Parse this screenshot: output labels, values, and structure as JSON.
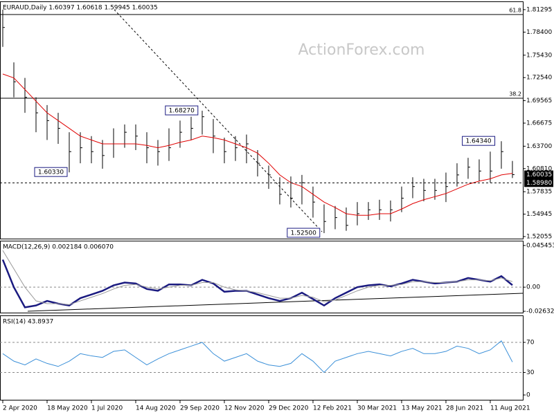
{
  "chart_data": [
    {
      "type": "ohlc",
      "title": "EURAUD,Daily  1.60397 1.60618 1.59945 1.60035",
      "watermark": "ActionForex.com",
      "color": "#000000",
      "xlim": [
        -0.25,
        46.94
      ],
      "xticks": [
        {
          "value": 0,
          "label": "2 Apr 2020"
        },
        {
          "value": 4,
          "label": "18 May 2020"
        },
        {
          "value": 8,
          "label": "1 Jul 2020"
        },
        {
          "value": 12,
          "label": "14 Aug 2020"
        },
        {
          "value": 16,
          "label": "29 Sep 2020"
        },
        {
          "value": 20,
          "label": "12 Nov 2020"
        },
        {
          "value": 24,
          "label": "29 Dec 2020"
        },
        {
          "value": 28,
          "label": "12 Feb 2021"
        },
        {
          "value": 32,
          "label": "30 Mar 2021"
        },
        {
          "value": 36,
          "label": "13 May 2021"
        },
        {
          "value": 40,
          "label": "28 Jun 2021"
        },
        {
          "value": 44,
          "label": "11 Aug 2021"
        }
      ],
      "ylim": [
        1.5179,
        1.8236
      ],
      "yticks": [
        1.81295,
        {
          "value": 1.784,
          "label": "1.78400"
        },
        {
          "value": 1.7543,
          "label": "1.75430"
        },
        {
          "value": 1.7254,
          "label": "1.72540"
        },
        1.69565,
        1.66675,
        {
          "value": 1.637,
          "label": "1.63700"
        },
        {
          "value": 1.6081,
          "label": "1.60810"
        },
        1.57835,
        1.54945,
        1.52055
      ],
      "high": [
        1.81295,
        1.745,
        1.725,
        1.7,
        1.69,
        1.68,
        1.655,
        1.655,
        1.65,
        1.645,
        1.66,
        1.665,
        1.665,
        1.655,
        1.645,
        1.66,
        1.67,
        1.675,
        1.6827,
        1.672,
        1.648,
        1.65,
        1.652,
        1.632,
        1.612,
        1.597,
        1.598,
        1.6,
        1.585,
        1.562,
        1.56,
        1.558,
        1.565,
        1.565,
        1.568,
        1.567,
        1.585,
        1.597,
        1.595,
        1.595,
        1.603,
        1.615,
        1.622,
        1.62,
        1.63,
        1.6434,
        1.618
      ],
      "low": [
        1.765,
        1.7,
        1.68,
        1.655,
        1.645,
        1.64,
        1.6033,
        1.615,
        1.615,
        1.608,
        1.622,
        1.635,
        1.632,
        1.615,
        1.612,
        1.618,
        1.635,
        1.645,
        1.652,
        1.628,
        1.615,
        1.618,
        1.615,
        1.598,
        1.582,
        1.562,
        1.558,
        1.562,
        1.545,
        1.525,
        1.53,
        1.528,
        1.535,
        1.542,
        1.542,
        1.54,
        1.552,
        1.57,
        1.566,
        1.568,
        1.565,
        1.585,
        1.595,
        1.592,
        1.59,
        1.608,
        1.596
      ],
      "close": [
        1.79,
        1.72,
        1.7,
        1.68,
        1.67,
        1.66,
        1.63,
        1.635,
        1.63,
        1.625,
        1.64,
        1.655,
        1.65,
        1.635,
        1.63,
        1.635,
        1.655,
        1.66,
        1.675,
        1.65,
        1.63,
        1.635,
        1.64,
        1.615,
        1.6,
        1.575,
        1.57,
        1.59,
        1.565,
        1.54,
        1.545,
        1.535,
        1.55,
        1.555,
        1.555,
        1.555,
        1.57,
        1.585,
        1.58,
        1.58,
        1.585,
        1.6,
        1.61,
        1.605,
        1.605,
        1.63,
        1.60035
      ],
      "ma": {
        "color": "#e00000",
        "values": [
          1.73,
          1.725,
          1.71,
          1.695,
          1.68,
          1.67,
          1.66,
          1.65,
          1.645,
          1.64,
          1.64,
          1.64,
          1.64,
          1.638,
          1.635,
          1.638,
          1.642,
          1.645,
          1.65,
          1.648,
          1.645,
          1.64,
          1.635,
          1.628,
          1.615,
          1.6,
          1.59,
          1.585,
          1.575,
          1.565,
          1.558,
          1.55,
          1.548,
          1.548,
          1.55,
          1.55,
          1.556,
          1.563,
          1.568,
          1.572,
          1.576,
          1.582,
          1.588,
          1.592,
          1.595,
          1.6,
          1.602
        ]
      },
      "fib_levels": [
        {
          "label": "61.8",
          "value": 1.8067
        },
        {
          "label": "38.2",
          "value": 1.6988
        }
      ],
      "price_marks": [
        {
          "label": "1.60035",
          "value": 1.60035,
          "dashed": false
        },
        {
          "label": "1.58980",
          "value": 1.5898,
          "dashed": true
        }
      ],
      "callouts": [
        {
          "label": "1.68270",
          "value": 1.6827,
          "at": 17.8
        },
        {
          "label": "1.60330",
          "value": 1.6033,
          "at": 6
        },
        {
          "label": "1.52500",
          "value": 1.525,
          "at": 28.8
        },
        {
          "label": "1.64340",
          "value": 1.6434,
          "at": 44.6
        }
      ]
    },
    {
      "type": "line",
      "title": "MACD(12,26,9) 0.002184 0.006070",
      "ylim": [
        -0.0278,
        0.0507
      ],
      "yticks": [
        0.045453,
        {
          "value": 0,
          "label": "0.00"
        },
        -0.02632
      ],
      "levels": [
        0
      ],
      "series": [
        {
          "color": "#1a1a80",
          "width": 2.5,
          "values": [
            0.03,
            0.0,
            -0.022,
            -0.02,
            -0.015,
            -0.018,
            -0.02,
            -0.012,
            -0.008,
            -0.004,
            0.002,
            0.005,
            0.004,
            -0.002,
            -0.004,
            0.003,
            0.003,
            0.002,
            0.008,
            0.004,
            -0.005,
            -0.004,
            -0.004,
            -0.008,
            -0.012,
            -0.015,
            -0.012,
            -0.006,
            -0.013,
            -0.02,
            -0.012,
            -0.006,
            0.0,
            0.002,
            0.003,
            0.001,
            0.004,
            0.008,
            0.006,
            0.004,
            0.005,
            0.006,
            0.01,
            0.008,
            0.006,
            0.012,
            0.002184
          ]
        },
        {
          "color": "#999999",
          "width": 1,
          "values": [
            0.04,
            0.02,
            0.0,
            -0.015,
            -0.018,
            -0.018,
            -0.019,
            -0.015,
            -0.011,
            -0.007,
            -0.002,
            0.002,
            0.003,
            0.0,
            -0.002,
            0.0,
            0.002,
            0.002,
            0.005,
            0.005,
            0.0,
            -0.003,
            -0.004,
            -0.006,
            -0.009,
            -0.012,
            -0.012,
            -0.009,
            -0.011,
            -0.016,
            -0.014,
            -0.009,
            -0.004,
            0.0,
            0.002,
            0.002,
            0.003,
            0.006,
            0.006,
            0.005,
            0.005,
            0.006,
            0.008,
            0.008,
            0.007,
            0.01,
            0.00607
          ]
        }
      ]
    },
    {
      "type": "line",
      "title": "RSI(14) 43.8937",
      "ylim": [
        -6.4,
        105.9
      ],
      "yticks": [
        70,
        30,
        0
      ],
      "levels": [
        70,
        30
      ],
      "series": [
        {
          "color": "#3a8fd8",
          "width": 1,
          "values": [
            55,
            45,
            40,
            48,
            42,
            38,
            45,
            55,
            52,
            50,
            58,
            60,
            50,
            40,
            48,
            55,
            60,
            65,
            70,
            55,
            45,
            50,
            55,
            45,
            40,
            38,
            42,
            55,
            45,
            30,
            45,
            50,
            55,
            58,
            55,
            52,
            58,
            62,
            55,
            55,
            58,
            65,
            62,
            55,
            60,
            72,
            43.8937
          ]
        }
      ]
    }
  ]
}
